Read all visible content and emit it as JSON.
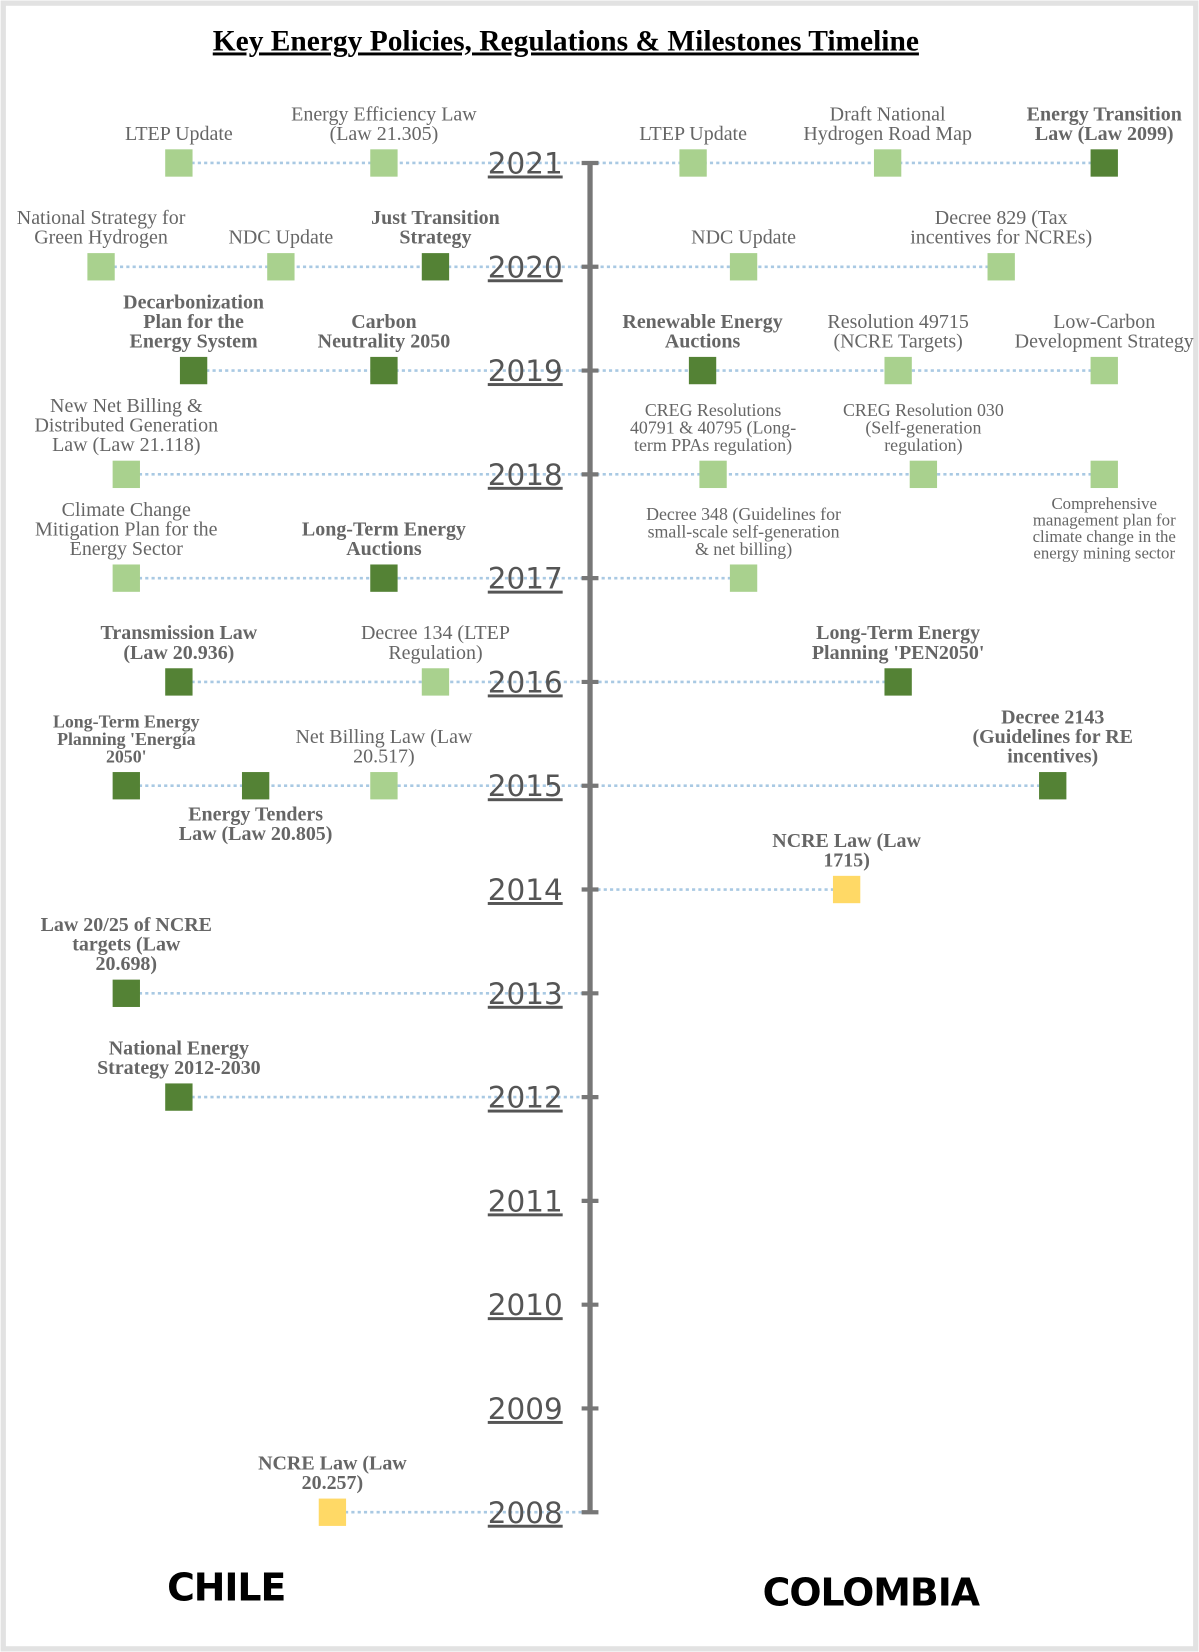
{
  "title": "Key Energy Policies, Regulations & Milestones Timeline",
  "years": [
    2021,
    2020,
    2019,
    2018,
    2017,
    2016,
    2015,
    2014,
    2013,
    2012,
    2011,
    2010,
    2009,
    2008
  ],
  "countries": {
    "chile": {
      "name": "CHILE",
      "events": [
        {
          "year": 2021,
          "label": [
            "LTEP Update"
          ],
          "color": "#a9d18e"
        },
        {
          "year": 2021,
          "label": [
            "Energy Efficiency Law",
            "(Law 21.305)"
          ],
          "color": "#a9d18e"
        },
        {
          "year": 2020,
          "label": [
            "National Strategy for",
            "Green Hydrogen"
          ],
          "color": "#a9d18e"
        },
        {
          "year": 2020,
          "label": [
            "NDC Update"
          ],
          "color": "#a9d18e"
        },
        {
          "year": 2020,
          "label": [
            "Just Transition",
            "Strategy"
          ],
          "color": "#548235"
        },
        {
          "year": 2019,
          "label": [
            "Decarbonization",
            "Plan for the",
            "Energy System"
          ],
          "color": "#548235"
        },
        {
          "year": 2019,
          "label": [
            "Carbon",
            "Neutrality 2050"
          ],
          "color": "#548235"
        },
        {
          "year": 2018,
          "label": [
            "New Net Billing &",
            "Distributed Generation",
            "Law (Law 21.118)"
          ],
          "color": "#a9d18e"
        },
        {
          "year": 2017,
          "label": [
            "Climate Change",
            "Mitigation Plan for the",
            "Energy Sector"
          ],
          "color": "#a9d18e"
        },
        {
          "year": 2017,
          "label": [
            "Long-Term Energy",
            "Auctions"
          ],
          "color": "#548235"
        },
        {
          "year": 2016,
          "label": [
            "Transmission Law",
            "(Law 20.936)"
          ],
          "color": "#548235"
        },
        {
          "year": 2016,
          "label": [
            "Decree 134 (LTEP",
            "Regulation)"
          ],
          "color": "#a9d18e"
        },
        {
          "year": 2015,
          "label": [
            "Long-Term Energy",
            "Planning 'Energía",
            "2050'"
          ],
          "color": "#548235"
        },
        {
          "year": 2015,
          "label": [
            "Energy Tenders",
            "Law (Law 20.805)"
          ],
          "color": "#548235"
        },
        {
          "year": 2015,
          "label": [
            "Net Billing Law (Law",
            "20.517)"
          ],
          "color": "#a9d18e"
        },
        {
          "year": 2013,
          "label": [
            "Law 20/25 of NCRE",
            "targets (Law",
            "20.698)"
          ],
          "color": "#548235"
        },
        {
          "year": 2012,
          "label": [
            "National Energy",
            "Strategy 2012-2030"
          ],
          "color": "#548235"
        },
        {
          "year": 2008,
          "label": [
            "NCRE Law (Law",
            "20.257)"
          ],
          "color": "#ffd966"
        }
      ]
    },
    "colombia": {
      "name": "COLOMBIA",
      "events": [
        {
          "year": 2021,
          "label": [
            "LTEP Update"
          ],
          "color": "#a9d18e"
        },
        {
          "year": 2021,
          "label": [
            "Draft National",
            "Hydrogen Road Map"
          ],
          "color": "#a9d18e"
        },
        {
          "year": 2021,
          "label": [
            "Energy Transition",
            "Law (Law 2099)"
          ],
          "color": "#548235"
        },
        {
          "year": 2020,
          "label": [
            "NDC Update"
          ],
          "color": "#a9d18e"
        },
        {
          "year": 2020,
          "label": [
            "Decree 829 (Tax",
            "incentives for NCREs)"
          ],
          "color": "#a9d18e"
        },
        {
          "year": 2019,
          "label": [
            "Renewable Energy",
            "Auctions"
          ],
          "color": "#548235"
        },
        {
          "year": 2019,
          "label": [
            "Resolution 49715",
            "(NCRE Targets)"
          ],
          "color": "#a9d18e"
        },
        {
          "year": 2019,
          "label": [
            "Low-Carbon",
            "Development Strategy"
          ],
          "color": "#a9d18e"
        },
        {
          "year": 2018,
          "label": [
            "CREG Resolutions",
            "40791 & 40795 (Long-",
            "term PPAs regulation)"
          ],
          "color": "#a9d18e"
        },
        {
          "year": 2018,
          "label": [
            "CREG Resolution 030",
            "(Self-generation",
            "regulation)"
          ],
          "color": "#a9d18e"
        },
        {
          "year": 2018,
          "label": [
            "Comprehensive",
            "management plan for",
            "climate change in the",
            "energy mining sector"
          ],
          "color": "#a9d18e"
        },
        {
          "year": 2017,
          "label": [
            "Decree 348 (Guidelines for",
            "small-scale self-generation",
            "& net billing)"
          ],
          "color": "#a9d18e"
        },
        {
          "year": 2016,
          "label": [
            "Long-Term Energy",
            "Planning 'PEN2050'"
          ],
          "color": "#548235"
        },
        {
          "year": 2015,
          "label": [
            "Decree 2143",
            "(Guidelines for RE",
            "incentives)"
          ],
          "color": "#548235"
        },
        {
          "year": 2014,
          "label": [
            "NCRE Law (Law",
            "1715)"
          ],
          "color": "#ffd966"
        }
      ]
    }
  }
}
